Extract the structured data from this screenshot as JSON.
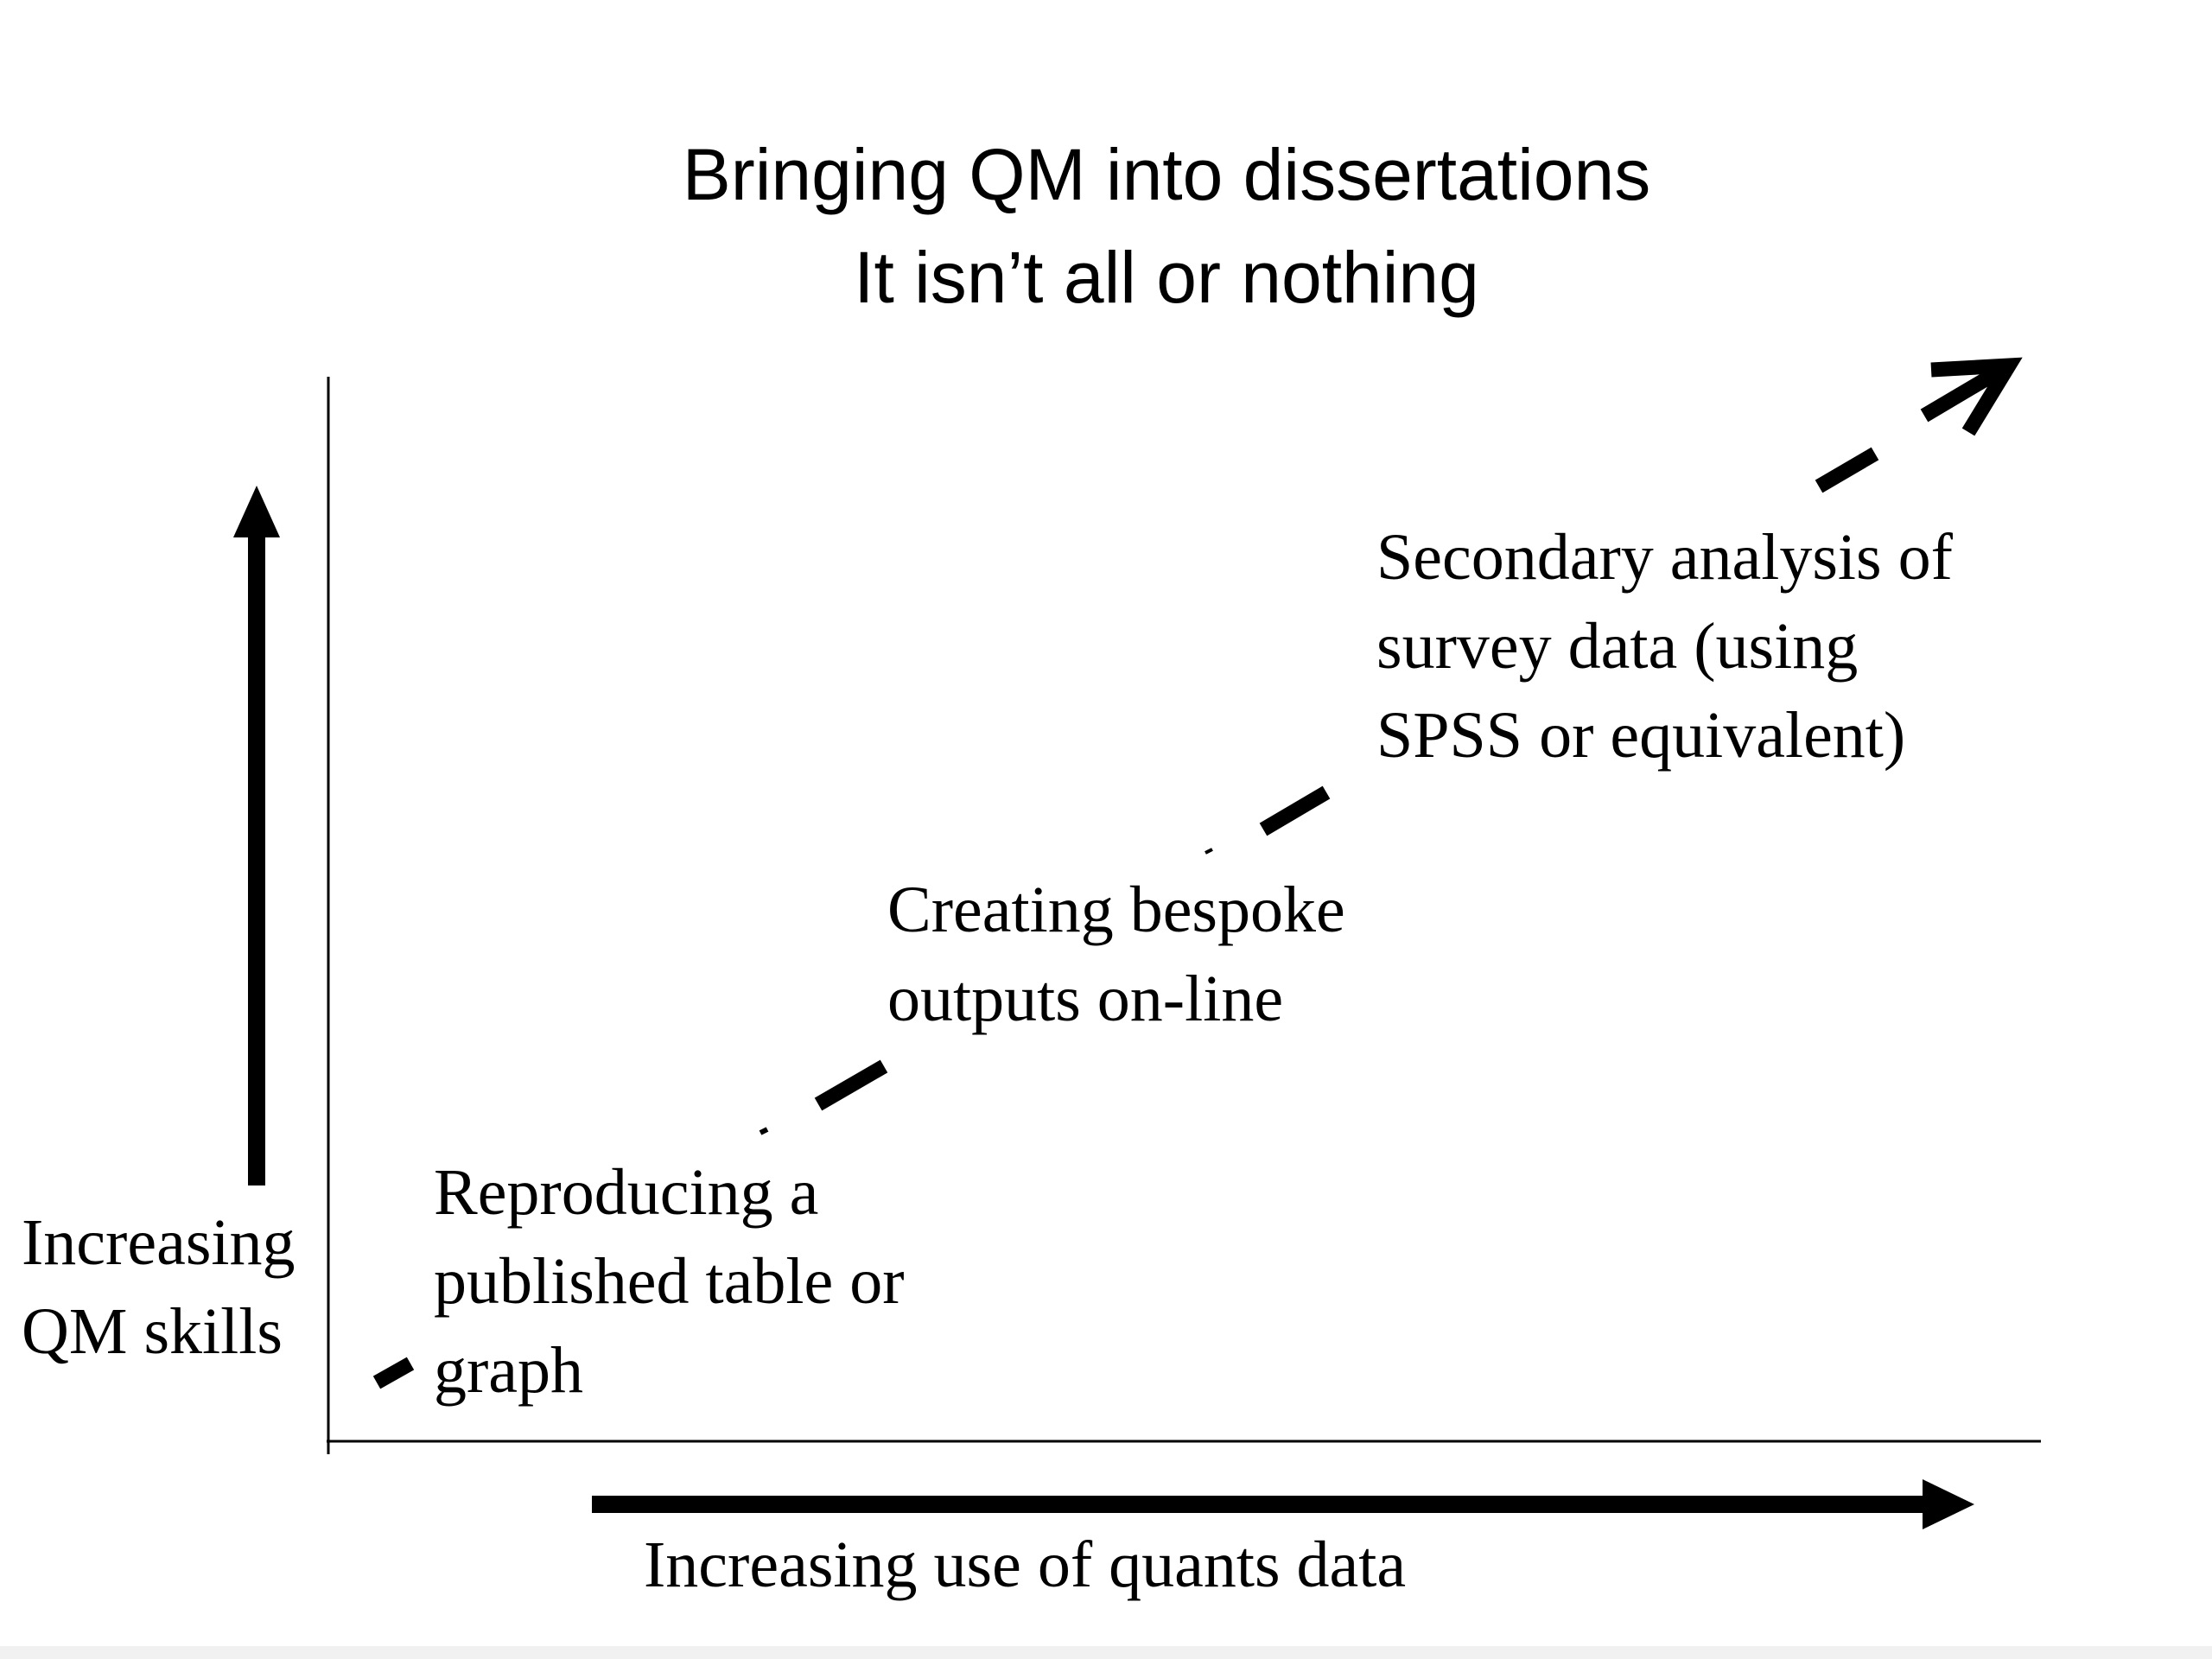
{
  "title": {
    "line1": "Bringing QM into dissertations",
    "line2": "It isn’t all or nothing"
  },
  "y_axis_label": {
    "line1": "Increasing",
    "line2": "QM skills"
  },
  "x_axis_label": "Increasing use of quants data",
  "stages": [
    {
      "lines": [
        "Reproducing a",
        "published table or",
        "graph"
      ]
    },
    {
      "lines": [
        "Creating bespoke",
        "outputs on-line"
      ]
    },
    {
      "lines": [
        "Secondary analysis of",
        "survey data (using",
        "SPSS or equivalent)"
      ]
    }
  ],
  "colors": {
    "ink": "#000000",
    "background": "#ffffff",
    "footer_strip": "#f1f1f1"
  },
  "icons": {
    "up_arrow": "arrow-up-icon",
    "right_arrow": "arrow-right-icon",
    "progression_arrow": "dashed-diagonal-arrow-icon"
  }
}
